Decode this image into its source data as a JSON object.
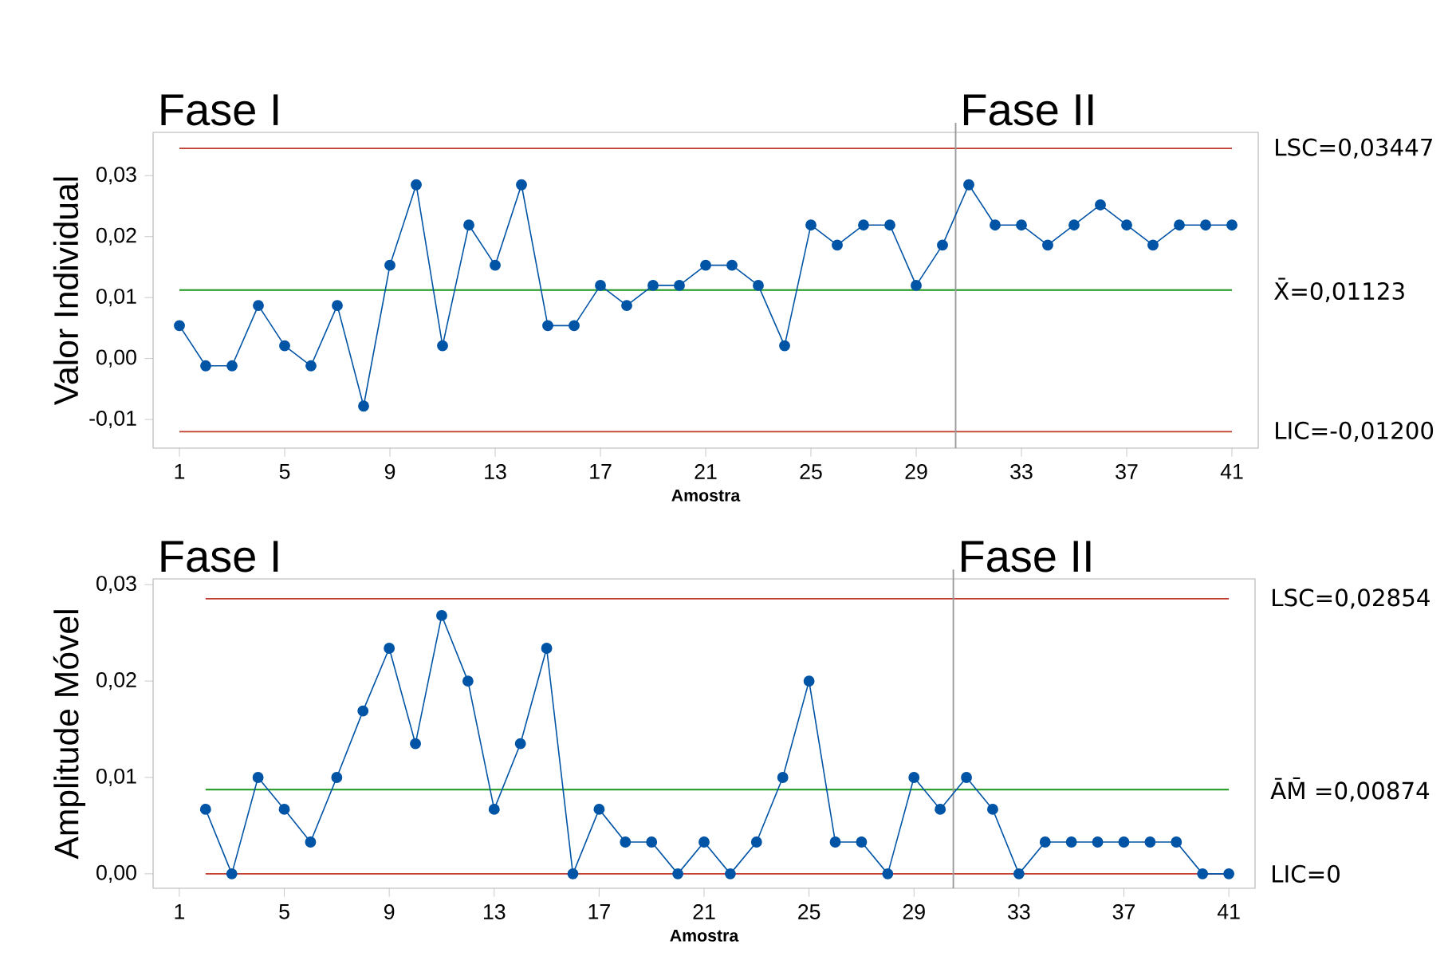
{
  "chart_data": [
    {
      "type": "line",
      "ylabel": "Valor Individual",
      "xlabel": "Amostra",
      "color": "#0054a6",
      "marker": "circle",
      "x": [
        1,
        2,
        3,
        4,
        5,
        6,
        7,
        8,
        9,
        10,
        11,
        12,
        13,
        14,
        15,
        16,
        17,
        18,
        19,
        20,
        21,
        22,
        23,
        24,
        25,
        26,
        27,
        28,
        29,
        30,
        31,
        32,
        33,
        34,
        35,
        36,
        37,
        38,
        39,
        40,
        41
      ],
      "values": [
        0.0054,
        -0.0012,
        -0.0012,
        0.0087,
        0.0021,
        -0.0012,
        0.0087,
        -0.0078,
        0.0153,
        0.0285,
        0.0021,
        0.0219,
        0.0153,
        0.0285,
        0.0054,
        0.0054,
        0.012,
        0.0087,
        0.012,
        0.012,
        0.0153,
        0.0153,
        0.012,
        0.0021,
        0.0219,
        0.0186,
        0.0219,
        0.0219,
        0.012,
        0.0186,
        0.0285,
        0.0219,
        0.0219,
        0.0186,
        0.0219,
        0.0252,
        0.0219,
        0.0186,
        0.0219,
        0.0219,
        0.0219
      ],
      "xlim": [
        0,
        42
      ],
      "xticks": [
        1,
        5,
        9,
        13,
        17,
        21,
        25,
        29,
        33,
        37,
        41
      ],
      "ylim": [
        -0.0147,
        0.0371
      ],
      "yticks": [
        {
          "value": -0.01,
          "label": "-0,01"
        },
        {
          "value": 0,
          "label": "0,00"
        },
        {
          "value": 0.01,
          "label": "0,01"
        },
        {
          "value": 0.02,
          "label": "0,02"
        },
        {
          "value": 0.03,
          "label": "0,03"
        }
      ],
      "ref_lines": [
        {
          "axis": "y",
          "value": 0.03447,
          "label": "LSC=0,03447",
          "color": "#c0392b"
        },
        {
          "axis": "y",
          "value": 0.01123,
          "label": "X̄=0,01123",
          "color": "#1a961a"
        },
        {
          "axis": "y",
          "value": -0.012,
          "label": "LIC=-0,01200",
          "color": "#c0392b"
        },
        {
          "axis": "x",
          "value": 30.5,
          "color": "#999999"
        }
      ],
      "annotations": [
        "Fase I",
        "Fase II"
      ]
    },
    {
      "type": "line",
      "ylabel": "Amplitude Móvel",
      "xlabel": "Amostra",
      "color": "#0054a6",
      "marker": "circle",
      "x": [
        2,
        3,
        4,
        5,
        6,
        7,
        8,
        9,
        10,
        11,
        12,
        13,
        14,
        15,
        16,
        17,
        18,
        19,
        20,
        21,
        22,
        23,
        24,
        25,
        26,
        27,
        28,
        29,
        30,
        31,
        32,
        33,
        34,
        35,
        36,
        37,
        38,
        39,
        40,
        41
      ],
      "values": [
        0.0067,
        0,
        0.01,
        0.0067,
        0.0033,
        0.01,
        0.0169,
        0.0234,
        0.0135,
        0.0268,
        0.02,
        0.0067,
        0.0135,
        0.0234,
        0,
        0.0067,
        0.0033,
        0.0033,
        0,
        0.0033,
        0,
        0.0033,
        0.01,
        0.02,
        0.0033,
        0.0033,
        0,
        0.01,
        0.0067,
        0.01,
        0.0067,
        0,
        0.0033,
        0.0033,
        0.0033,
        0.0033,
        0.0033,
        0.0033,
        0,
        0
      ],
      "xlim": [
        0,
        42
      ],
      "xticks": [
        1,
        5,
        9,
        13,
        17,
        21,
        25,
        29,
        33,
        37,
        41
      ],
      "ylim": [
        -0.0015,
        0.0306
      ],
      "yticks": [
        {
          "value": 0,
          "label": "0,00"
        },
        {
          "value": 0.01,
          "label": "0,01"
        },
        {
          "value": 0.02,
          "label": "0,02"
        },
        {
          "value": 0.03,
          "label": "0,03"
        }
      ],
      "ref_lines": [
        {
          "axis": "y",
          "value": 0.02854,
          "label": "LSC=0,02854",
          "color": "#c0392b"
        },
        {
          "axis": "y",
          "value": 0.00874,
          "label": "ĀM̄ =0,00874",
          "color": "#1a961a"
        },
        {
          "axis": "y",
          "value": 0,
          "label": "LIC=0",
          "color": "#c0392b"
        },
        {
          "axis": "x",
          "value": 30.5,
          "color": "#999999"
        }
      ],
      "annotations": [
        "Fase I",
        "Fase II"
      ]
    }
  ]
}
